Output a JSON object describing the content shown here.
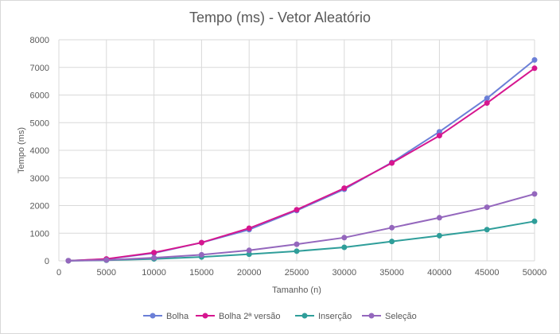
{
  "chart_data": {
    "type": "line",
    "title": "Tempo (ms) - Vetor Aleatório",
    "xlabel": "Tamanho (n)",
    "ylabel": "Tempo (ms)",
    "xlim": [
      0,
      50000
    ],
    "ylim": [
      0,
      8000
    ],
    "xticks": [
      "0",
      "5000",
      "10000",
      "15000",
      "20000",
      "25000",
      "30000",
      "35000",
      "40000",
      "45000",
      "50000"
    ],
    "yticks": [
      "0",
      "1000",
      "2000",
      "3000",
      "4000",
      "5000",
      "6000",
      "7000",
      "8000"
    ],
    "grid": true,
    "legend_position": "bottom",
    "x": [
      1000,
      5000,
      10000,
      15000,
      20000,
      25000,
      30000,
      35000,
      40000,
      45000,
      50000
    ],
    "series": [
      {
        "name": "Bolha",
        "color": "#6b7fd7",
        "values": [
          5,
          60,
          280,
          660,
          1130,
          1820,
          2590,
          3560,
          4670,
          5880,
          7270
        ]
      },
      {
        "name": "Bolha 2ª versão",
        "color": "#d6168f",
        "values": [
          5,
          70,
          300,
          660,
          1180,
          1850,
          2630,
          3540,
          4530,
          5710,
          6970
        ]
      },
      {
        "name": "Inserção",
        "color": "#2f9e9a",
        "values": [
          2,
          20,
          70,
          140,
          240,
          350,
          490,
          700,
          910,
          1130,
          1430
        ]
      },
      {
        "name": "Seleção",
        "color": "#9467bd",
        "values": [
          3,
          30,
          110,
          220,
          380,
          600,
          840,
          1200,
          1560,
          1940,
          2420
        ]
      }
    ]
  }
}
